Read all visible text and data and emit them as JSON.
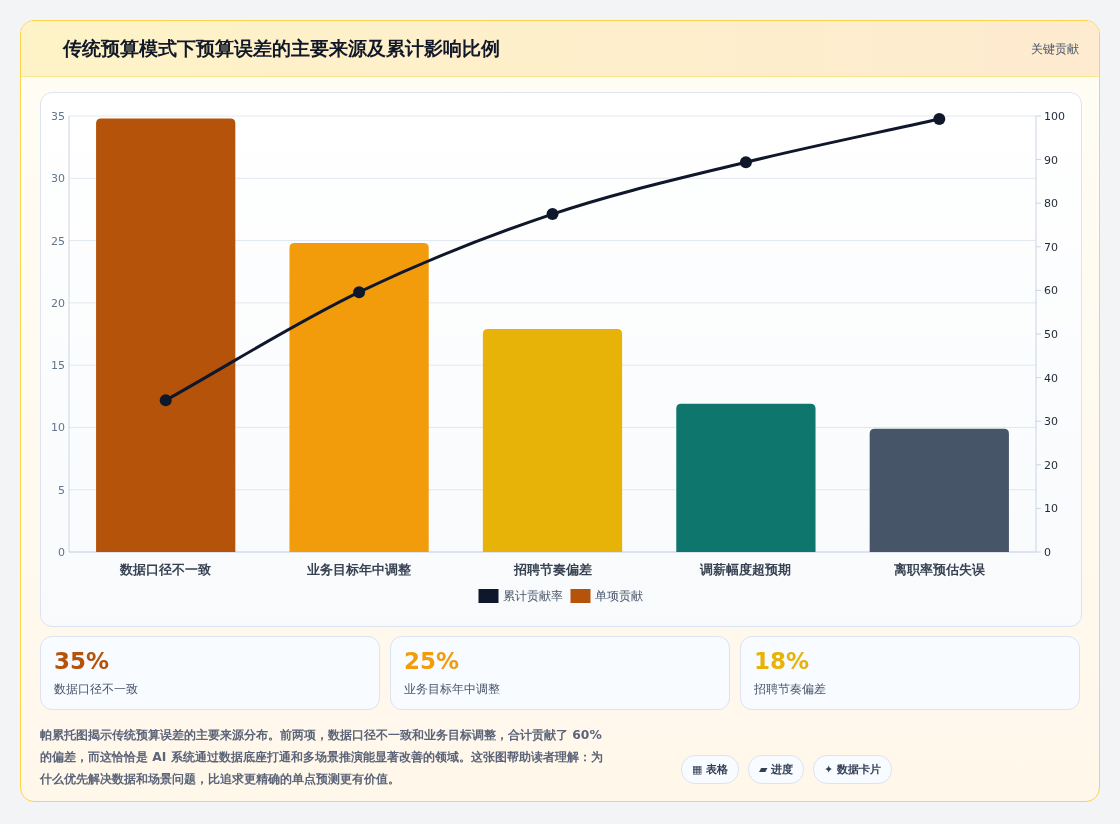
{
  "chart_data": {
    "type": "bar",
    "title": "传统预算模式下预算误差的主要来源及累计影响比例",
    "categories": [
      "数据口径不一致",
      "业务目标年中调整",
      "招聘节奏偏差",
      "调薪幅度超预期",
      "离职率预估失误"
    ],
    "series": [
      {
        "name": "单项贡献",
        "color": "#b45309",
        "colors": [
          "#b45309",
          "#f39c0b",
          "#e8b309",
          "#0f766e",
          "#475569"
        ],
        "values": [
          34.8,
          24.8,
          17.9,
          11.9,
          9.9
        ]
      },
      {
        "name": "累计贡献率",
        "type": "line",
        "axis": "y2",
        "color": "#0f172a",
        "values": [
          34.8,
          59.6,
          77.5,
          89.4,
          99.3
        ]
      }
    ],
    "ylim": [
      0,
      35
    ],
    "yticks": [
      0,
      5,
      10,
      15,
      20,
      25,
      30,
      35
    ],
    "y2lim": [
      0,
      100
    ],
    "y2ticks": [
      0,
      10,
      20,
      30,
      40,
      50,
      60,
      70,
      80,
      90,
      100
    ],
    "grid": "y",
    "legend": "bottom",
    "marker": "circle",
    "line_style": "solid",
    "annotations": [
      "关键贡献",
      "35%",
      "数据口径不一致",
      "25%",
      "业务目标年中调整",
      "18%",
      "招聘节奏偏差",
      "帕累托图揭示传统预算误差的主要来源分布。前两项，数据口径不一致和业务目标调整，合计贡献了 60% 的偏差，而这恰恰是 AI 系统通过数据底座打通和多场景推演能显著改善的领域。这张图帮助读者理解：为什么优先解决数据和场景问题，比追求更精确的单点预测更有价值。",
      "▦ 表格",
      "▰ 进度",
      "✦ 数据卡片"
    ]
  }
}
